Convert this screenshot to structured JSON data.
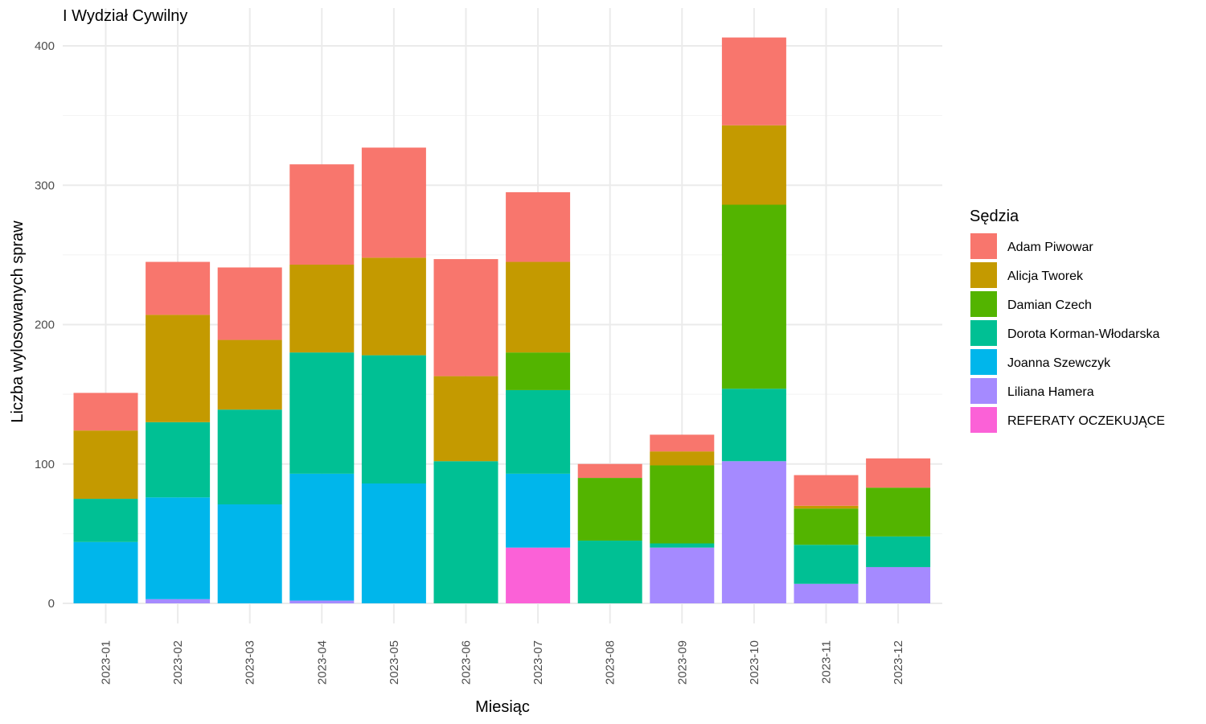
{
  "chart_data": {
    "type": "bar",
    "stacked": true,
    "title": "I Wydział Cywilny",
    "xlabel": "Miesiąc",
    "ylabel": "Liczba wylosowanych spraw",
    "ylim": [
      0,
      420
    ],
    "yticks": [
      0,
      100,
      200,
      300,
      400
    ],
    "grid": true,
    "legend": {
      "title": "Sędzia",
      "position": "right"
    },
    "categories": [
      "2023-01",
      "2023-02",
      "2023-03",
      "2023-04",
      "2023-05",
      "2023-06",
      "2023-07",
      "2023-08",
      "2023-09",
      "2023-10",
      "2023-11",
      "2023-12"
    ],
    "series": [
      {
        "name": "Adam Piwowar",
        "color": "#F8766D",
        "values": [
          27,
          38,
          52,
          72,
          79,
          84,
          50,
          10,
          12,
          63,
          22,
          21
        ]
      },
      {
        "name": "Alicja Tworek",
        "color": "#C49A00",
        "values": [
          49,
          77,
          50,
          63,
          70,
          61,
          65,
          0,
          10,
          57,
          2,
          0
        ]
      },
      {
        "name": "Damian Czech",
        "color": "#53B400",
        "values": [
          0,
          0,
          0,
          0,
          0,
          0,
          27,
          45,
          56,
          132,
          26,
          35
        ]
      },
      {
        "name": "Dorota Korman-Włodarska",
        "color": "#00C094",
        "values": [
          31,
          54,
          68,
          87,
          92,
          102,
          60,
          45,
          3,
          52,
          28,
          22
        ]
      },
      {
        "name": "Joanna Szewczyk",
        "color": "#00B6EB",
        "values": [
          44,
          73,
          71,
          91,
          86,
          0,
          53,
          0,
          0,
          0,
          0,
          0
        ]
      },
      {
        "name": "Liliana Hamera",
        "color": "#A58AFF",
        "values": [
          0,
          3,
          0,
          2,
          0,
          0,
          0,
          0,
          40,
          102,
          14,
          26
        ]
      },
      {
        "name": "REFERATY OCZEKUJĄCE",
        "color": "#FB61D7",
        "values": [
          0,
          0,
          0,
          0,
          0,
          0,
          40,
          0,
          0,
          0,
          0,
          0
        ]
      }
    ]
  }
}
